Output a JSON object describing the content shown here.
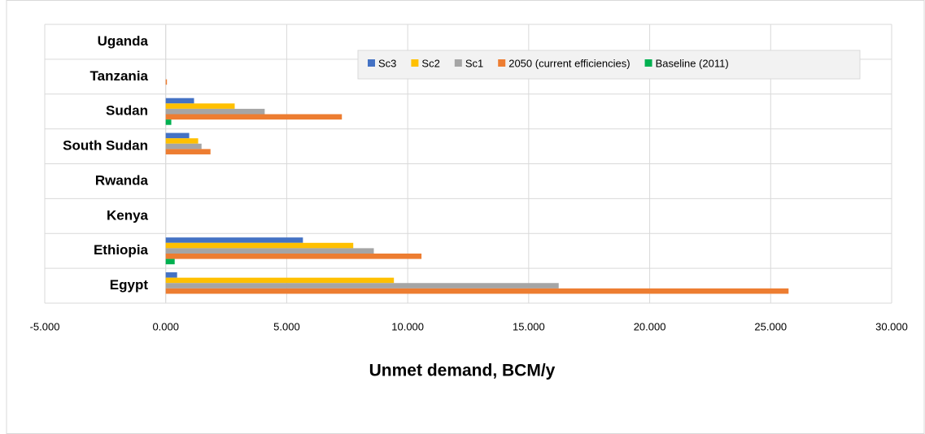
{
  "chart_data": {
    "type": "bar",
    "orientation": "horizontal",
    "x_label": "Unmet demand, BCM/y",
    "categories": [
      "Egypt",
      "Ethiopia",
      "Kenya",
      "Rwanda",
      "South Sudan",
      "Sudan",
      "Tanzania",
      "Uganda"
    ],
    "series": [
      {
        "name": "Sc3",
        "color": "#4472c4",
        "values": [
          0.47,
          5.67,
          0,
          0,
          0.97,
          1.17,
          0,
          0
        ]
      },
      {
        "name": "Sc2",
        "color": "#ffc000",
        "values": [
          9.43,
          7.75,
          0,
          0,
          1.34,
          2.85,
          0,
          0
        ]
      },
      {
        "name": "Sc1",
        "color": "#a5a5a5",
        "values": [
          16.24,
          8.6,
          0,
          0,
          1.48,
          4.09,
          0,
          0
        ]
      },
      {
        "name": "2050 (current efficiencies)",
        "color": "#ed7d31",
        "values": [
          25.74,
          10.57,
          0,
          0,
          1.85,
          7.28,
          0.05,
          0
        ]
      },
      {
        "name": "Baseline (2011)",
        "color": "#00b050",
        "values": [
          0,
          0.37,
          0,
          0,
          0,
          0.23,
          0,
          0
        ]
      }
    ],
    "xlim": [
      -5,
      30
    ],
    "xticks": [
      {
        "value": -5,
        "label": "-5.000"
      },
      {
        "value": 0,
        "label": "0.000"
      },
      {
        "value": 5,
        "label": "5.000"
      },
      {
        "value": 10,
        "label": "10.000"
      },
      {
        "value": 15,
        "label": "15.000"
      },
      {
        "value": 20,
        "label": "20.000"
      },
      {
        "value": 25,
        "label": "25.000"
      },
      {
        "value": 30,
        "label": "30.000"
      }
    ],
    "grid": true,
    "legend": "top-right"
  }
}
